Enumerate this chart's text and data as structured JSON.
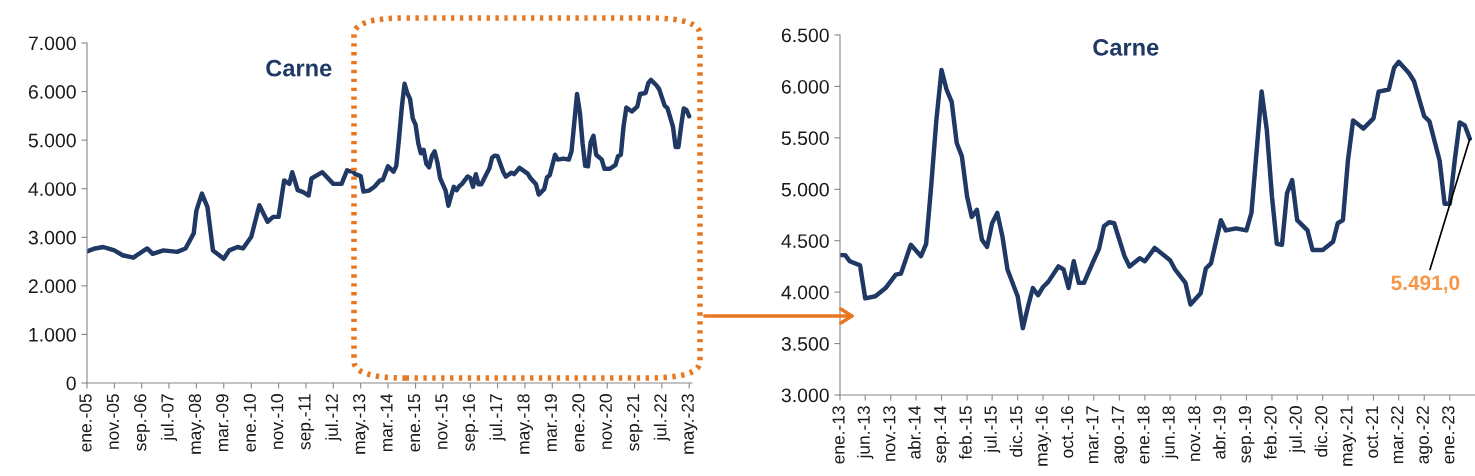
{
  "chart_data": [
    {
      "type": "line",
      "title": "Carne",
      "color": "#1f3864",
      "line_style": "solid",
      "marker": "none",
      "grid": false,
      "legend": false,
      "x": [
        "2005-01",
        "2005-04",
        "2005-07",
        "2005-11",
        "2006-02",
        "2006-06",
        "2006-08",
        "2006-11",
        "2007-01",
        "2007-05",
        "2007-10",
        "2008-01",
        "2008-04",
        "2008-05",
        "2008-07",
        "2008-09",
        "2008-11",
        "2009-03",
        "2009-05",
        "2009-08",
        "2009-10",
        "2010-01",
        "2010-04",
        "2010-07",
        "2010-09",
        "2010-11",
        "2011-01",
        "2011-03",
        "2011-04",
        "2011-06",
        "2011-08",
        "2011-10",
        "2011-11",
        "2012-03",
        "2012-07",
        "2012-10",
        "2012-12",
        "2013-01",
        "2013-02",
        "2013-03",
        "2013-05",
        "2013-06",
        "2013-08",
        "2013-10",
        "2013-12",
        "2014-01",
        "2014-03",
        "2014-05",
        "2014-06",
        "2014-07",
        "2014-08",
        "2014-09",
        "2014-10",
        "2014-11",
        "2014-12",
        "2015-01",
        "2015-02",
        "2015-03",
        "2015-04",
        "2015-05",
        "2015-06",
        "2015-07",
        "2015-08",
        "2015-09",
        "2015-10",
        "2015-12",
        "2016-01",
        "2016-02",
        "2016-03",
        "2016-04",
        "2016-05",
        "2016-06",
        "2016-08",
        "2016-09",
        "2016-10",
        "2016-11",
        "2016-12",
        "2017-01",
        "2017-03",
        "2017-04",
        "2017-05",
        "2017-06",
        "2017-07",
        "2017-09",
        "2017-10",
        "2017-12",
        "2018-01",
        "2018-03",
        "2018-06",
        "2018-07",
        "2018-09",
        "2018-10",
        "2018-12",
        "2019-01",
        "2019-02",
        "2019-04",
        "2019-05",
        "2019-07",
        "2019-09",
        "2019-10",
        "2019-12",
        "2020-01",
        "2020-02",
        "2020-03",
        "2020-04",
        "2020-05",
        "2020-06",
        "2020-07",
        "2020-09",
        "2020-10",
        "2020-12",
        "2021-02",
        "2021-03",
        "2021-04",
        "2021-05",
        "2021-06",
        "2021-08",
        "2021-10",
        "2021-11",
        "2022-01",
        "2022-02",
        "2022-03",
        "2022-05",
        "2022-06",
        "2022-08",
        "2022-09",
        "2022-11",
        "2022-12",
        "2023-01",
        "2023-02",
        "2023-03",
        "2023-04",
        "2023-05"
      ],
      "values": [
        2710,
        2770,
        2800,
        2730,
        2630,
        2580,
        2660,
        2770,
        2660,
        2730,
        2700,
        2770,
        3080,
        3550,
        3900,
        3620,
        2730,
        2560,
        2730,
        2800,
        2770,
        3010,
        3660,
        3320,
        3420,
        3420,
        4170,
        4100,
        4340,
        3970,
        3930,
        3860,
        4210,
        4340,
        4100,
        4100,
        4380,
        4360,
        4360,
        4300,
        4260,
        3940,
        3960,
        4040,
        4170,
        4180,
        4460,
        4350,
        4470,
        5030,
        5670,
        6160,
        5970,
        5850,
        5450,
        5320,
        4930,
        4730,
        4800,
        4510,
        4440,
        4670,
        4770,
        4540,
        4220,
        3960,
        3650,
        3860,
        4040,
        3970,
        4050,
        4100,
        4250,
        4220,
        4040,
        4300,
        4090,
        4090,
        4310,
        4420,
        4640,
        4680,
        4670,
        4350,
        4250,
        4330,
        4300,
        4430,
        4310,
        4220,
        4090,
        3880,
        3990,
        4230,
        4280,
        4700,
        4600,
        4620,
        4600,
        4770,
        5950,
        5580,
        4930,
        4470,
        4460,
        4960,
        5090,
        4700,
        4600,
        4410,
        4410,
        4490,
        4670,
        4700,
        5280,
        5670,
        5590,
        5690,
        5950,
        5970,
        6180,
        6240,
        6130,
        6050,
        5710,
        5660,
        5280,
        4860,
        4860,
        5300,
        5650,
        5620,
        5491
      ],
      "xlim": [
        "2005-01",
        "2023-06"
      ],
      "xticks": [
        {
          "value": "2005-01",
          "label": "ene.-05"
        },
        {
          "value": "2005-11",
          "label": "nov.-05"
        },
        {
          "value": "2006-09",
          "label": "sep.-06"
        },
        {
          "value": "2007-07",
          "label": "jul.-07"
        },
        {
          "value": "2008-05",
          "label": "may.-08"
        },
        {
          "value": "2009-03",
          "label": "mar.-09"
        },
        {
          "value": "2010-01",
          "label": "ene.-10"
        },
        {
          "value": "2010-11",
          "label": "nov.-10"
        },
        {
          "value": "2011-09",
          "label": "sep.-11"
        },
        {
          "value": "2012-07",
          "label": "jul.-12"
        },
        {
          "value": "2013-05",
          "label": "may.-13"
        },
        {
          "value": "2014-03",
          "label": "mar.-14"
        },
        {
          "value": "2015-01",
          "label": "ene.-15"
        },
        {
          "value": "2015-11",
          "label": "nov.-15"
        },
        {
          "value": "2016-09",
          "label": "sep.-16"
        },
        {
          "value": "2017-07",
          "label": "jul.-17"
        },
        {
          "value": "2018-05",
          "label": "may.-18"
        },
        {
          "value": "2019-03",
          "label": "mar.-19"
        },
        {
          "value": "2020-01",
          "label": "ene.-20"
        },
        {
          "value": "2020-11",
          "label": "nov.-20"
        },
        {
          "value": "2021-09",
          "label": "sep.-21"
        },
        {
          "value": "2022-07",
          "label": "jul.-22"
        },
        {
          "value": "2023-05",
          "label": "may.-23"
        }
      ],
      "ylim": [
        0,
        7000
      ],
      "yticks": [
        0,
        {
          "value": 1000,
          "label": "1.000"
        },
        {
          "value": 2000,
          "label": "2.000"
        },
        {
          "value": 3000,
          "label": "3.000"
        },
        {
          "value": 4000,
          "label": "4.000"
        },
        {
          "value": 5000,
          "label": "5.000"
        },
        {
          "value": 6000,
          "label": "6.000"
        },
        {
          "value": 7000,
          "label": "7.000"
        }
      ]
    },
    {
      "type": "line",
      "title": "Carne",
      "color": "#1f3864",
      "line_style": "solid",
      "marker": "none",
      "grid": false,
      "legend": false,
      "x": [
        "2013-01",
        "2013-02",
        "2013-03",
        "2013-05",
        "2013-06",
        "2013-08",
        "2013-10",
        "2013-12",
        "2014-01",
        "2014-03",
        "2014-05",
        "2014-06",
        "2014-07",
        "2014-08",
        "2014-09",
        "2014-10",
        "2014-11",
        "2014-12",
        "2015-01",
        "2015-02",
        "2015-03",
        "2015-04",
        "2015-05",
        "2015-06",
        "2015-07",
        "2015-08",
        "2015-09",
        "2015-10",
        "2015-12",
        "2016-01",
        "2016-02",
        "2016-03",
        "2016-04",
        "2016-05",
        "2016-06",
        "2016-08",
        "2016-09",
        "2016-10",
        "2016-11",
        "2016-12",
        "2017-01",
        "2017-03",
        "2017-04",
        "2017-05",
        "2017-06",
        "2017-07",
        "2017-09",
        "2017-10",
        "2017-12",
        "2018-01",
        "2018-03",
        "2018-06",
        "2018-07",
        "2018-09",
        "2018-10",
        "2018-12",
        "2019-01",
        "2019-02",
        "2019-04",
        "2019-05",
        "2019-07",
        "2019-09",
        "2019-10",
        "2019-12",
        "2020-01",
        "2020-02",
        "2020-03",
        "2020-04",
        "2020-05",
        "2020-06",
        "2020-07",
        "2020-09",
        "2020-10",
        "2020-12",
        "2021-02",
        "2021-03",
        "2021-04",
        "2021-05",
        "2021-06",
        "2021-08",
        "2021-10",
        "2021-11",
        "2022-01",
        "2022-02",
        "2022-03",
        "2022-05",
        "2022-06",
        "2022-08",
        "2022-09",
        "2022-11",
        "2022-12",
        "2023-01",
        "2023-02",
        "2023-03",
        "2023-04",
        "2023-05"
      ],
      "values": [
        4360,
        4360,
        4300,
        4260,
        3940,
        3960,
        4040,
        4170,
        4180,
        4460,
        4350,
        4470,
        5030,
        5670,
        6160,
        5970,
        5850,
        5450,
        5320,
        4930,
        4730,
        4800,
        4510,
        4440,
        4670,
        4770,
        4540,
        4220,
        3960,
        3650,
        3860,
        4040,
        3970,
        4050,
        4100,
        4250,
        4220,
        4040,
        4300,
        4090,
        4090,
        4310,
        4420,
        4640,
        4680,
        4670,
        4350,
        4250,
        4330,
        4300,
        4430,
        4310,
        4220,
        4090,
        3880,
        3990,
        4230,
        4280,
        4700,
        4600,
        4620,
        4600,
        4770,
        5950,
        5580,
        4930,
        4470,
        4460,
        4960,
        5090,
        4700,
        4600,
        4410,
        4410,
        4490,
        4670,
        4700,
        5280,
        5670,
        5590,
        5690,
        5950,
        5970,
        6180,
        6240,
        6130,
        6050,
        5710,
        5660,
        5280,
        4860,
        4860,
        5300,
        5650,
        5620,
        5491
      ],
      "xlim": [
        "2013-01",
        "2023-06"
      ],
      "xticks": [
        {
          "value": "2013-01",
          "label": "ene.-13"
        },
        {
          "value": "2013-06",
          "label": "jun.-13"
        },
        {
          "value": "2013-11",
          "label": "nov.-13"
        },
        {
          "value": "2014-04",
          "label": "abr.-14"
        },
        {
          "value": "2014-09",
          "label": "sep.-14"
        },
        {
          "value": "2015-02",
          "label": "feb.-15"
        },
        {
          "value": "2015-07",
          "label": "jul.-15"
        },
        {
          "value": "2015-12",
          "label": "dic.-15"
        },
        {
          "value": "2016-05",
          "label": "may.-16"
        },
        {
          "value": "2016-10",
          "label": "oct.-16"
        },
        {
          "value": "2017-03",
          "label": "mar.-17"
        },
        {
          "value": "2017-08",
          "label": "ago.-17"
        },
        {
          "value": "2018-01",
          "label": "ene.-18"
        },
        {
          "value": "2018-06",
          "label": "jun.-18"
        },
        {
          "value": "2018-11",
          "label": "nov.-18"
        },
        {
          "value": "2019-04",
          "label": "abr.-19"
        },
        {
          "value": "2019-09",
          "label": "sep.-19"
        },
        {
          "value": "2020-02",
          "label": "feb.-20"
        },
        {
          "value": "2020-07",
          "label": "jul.-20"
        },
        {
          "value": "2020-12",
          "label": "dic.-20"
        },
        {
          "value": "2021-05",
          "label": "may.-21"
        },
        {
          "value": "2021-10",
          "label": "oct.-21"
        },
        {
          "value": "2022-03",
          "label": "mar.-22"
        },
        {
          "value": "2022-08",
          "label": "ago.-22"
        },
        {
          "value": "2023-01",
          "label": "ene.-23"
        }
      ],
      "ylim": [
        3000,
        6500
      ],
      "yticks": [
        {
          "value": 3000,
          "label": "3.000"
        },
        {
          "value": 3500,
          "label": "3.500"
        },
        {
          "value": 4000,
          "label": "4.000"
        },
        {
          "value": 4500,
          "label": "4.500"
        },
        {
          "value": 5000,
          "label": "5.000"
        },
        {
          "value": 5500,
          "label": "5.500"
        },
        {
          "value": 6000,
          "label": "6.000"
        },
        {
          "value": 6500,
          "label": "6.500"
        }
      ],
      "annotations": [
        {
          "text": "5.491,0",
          "x": "2023-05",
          "y": 5491
        }
      ]
    }
  ]
}
